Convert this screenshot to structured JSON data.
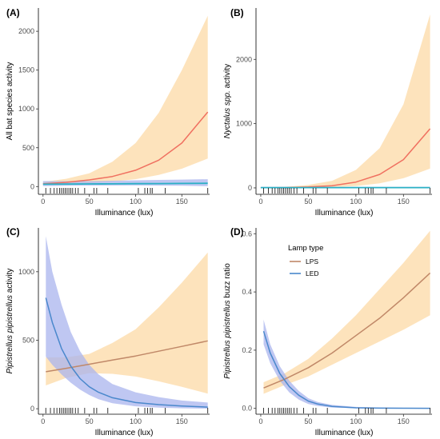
{
  "colors": {
    "lps_ribbon": "#fde2b8",
    "led_ribbon": "#aab4ee",
    "lps_line_top": "#f07060",
    "led_line_top": "#2ab0c5",
    "lps_line_bottom": "#c08868",
    "led_line_bottom": "#4a88cc"
  },
  "legend": {
    "title": "Lamp type",
    "items": [
      {
        "label": "LPS",
        "color": "#c08868"
      },
      {
        "label": "LED",
        "color": "#4a88cc"
      }
    ]
  },
  "rug_x": [
    3,
    8,
    12,
    15,
    18,
    20,
    22,
    24,
    26,
    28,
    30,
    32,
    35,
    38,
    45,
    55,
    58,
    70,
    103,
    110,
    113,
    116,
    118,
    132,
    178
  ],
  "chart_data": [
    {
      "type": "line",
      "panel": "(A)",
      "xlabel": "Illuminance (lux)",
      "ylabel": "All bat species activity",
      "xlim": [
        -5,
        180
      ],
      "ylim": [
        -100,
        2300
      ],
      "xticks": [
        0,
        50,
        100,
        150
      ],
      "yticks": [
        0,
        500,
        1000,
        1500,
        2000
      ],
      "series": [
        {
          "name": "LPS",
          "x": [
            0,
            25,
            50,
            75,
            100,
            125,
            150,
            178
          ],
          "y": [
            35,
            55,
            85,
            130,
            210,
            340,
            560,
            960
          ],
          "lower": [
            20,
            30,
            45,
            65,
            95,
            150,
            230,
            360
          ],
          "upper": [
            60,
            100,
            170,
            320,
            560,
            950,
            1500,
            2200
          ]
        },
        {
          "name": "LED",
          "x": [
            0,
            25,
            50,
            75,
            100,
            125,
            150,
            178
          ],
          "y": [
            30,
            32,
            34,
            35,
            37,
            38,
            40,
            42
          ],
          "lower": [
            5,
            10,
            12,
            13,
            14,
            12,
            10,
            5
          ],
          "upper": [
            70,
            70,
            70,
            75,
            80,
            85,
            90,
            95
          ]
        }
      ]
    },
    {
      "type": "line",
      "panel": "(B)",
      "xlabel": "Illuminance (lux)",
      "ylabel": "Nyctalus spp. activity",
      "xlim": [
        -5,
        180
      ],
      "ylim": [
        -100,
        2800
      ],
      "xticks": [
        0,
        50,
        100,
        150
      ],
      "yticks": [
        0,
        1000,
        2000
      ],
      "series": [
        {
          "name": "LPS",
          "x": [
            0,
            25,
            50,
            75,
            100,
            125,
            150,
            178
          ],
          "y": [
            2,
            5,
            15,
            35,
            90,
            210,
            440,
            920
          ],
          "lower": [
            1,
            2,
            5,
            12,
            30,
            70,
            150,
            300
          ],
          "upper": [
            5,
            15,
            45,
            110,
            280,
            620,
            1300,
            2700
          ]
        },
        {
          "name": "LED",
          "x": [
            0,
            25,
            50,
            75,
            100,
            125,
            150,
            178
          ],
          "y": [
            5,
            5,
            5,
            5,
            5,
            5,
            5,
            5
          ],
          "lower": [
            1,
            1,
            1,
            1,
            1,
            1,
            1,
            1
          ],
          "upper": [
            15,
            15,
            15,
            15,
            15,
            15,
            15,
            15
          ]
        }
      ]
    },
    {
      "type": "line",
      "panel": "(C)",
      "xlabel": "Illuminance (lux)",
      "ylabel": "Pipistrellus pipistrellus activity",
      "xlim": [
        -5,
        180
      ],
      "ylim": [
        -40,
        1320
      ],
      "xticks": [
        0,
        50,
        100,
        150
      ],
      "yticks": [
        0,
        500,
        1000
      ],
      "series": [
        {
          "name": "LPS",
          "x": [
            3,
            25,
            50,
            75,
            100,
            125,
            150,
            178
          ],
          "y": [
            270,
            295,
            325,
            355,
            385,
            420,
            455,
            495
          ],
          "lower": [
            170,
            225,
            260,
            255,
            235,
            200,
            160,
            110
          ],
          "upper": [
            375,
            375,
            400,
            480,
            580,
            740,
            920,
            1140
          ]
        },
        {
          "name": "LED",
          "x": [
            3,
            10,
            20,
            30,
            40,
            50,
            60,
            75,
            100,
            125,
            150,
            178
          ],
          "y": [
            810,
            630,
            440,
            310,
            220,
            160,
            120,
            80,
            45,
            30,
            20,
            12
          ],
          "lower": [
            380,
            320,
            250,
            190,
            140,
            100,
            70,
            40,
            18,
            8,
            3,
            1
          ],
          "upper": [
            1260,
            1000,
            760,
            560,
            420,
            320,
            250,
            180,
            120,
            85,
            60,
            45
          ]
        }
      ]
    },
    {
      "type": "line",
      "panel": "(D)",
      "xlabel": "Illuminance (lux)",
      "ylabel": "Pipistrellus pipistrellus buzz ratio",
      "xlim": [
        -5,
        180
      ],
      "ylim": [
        -0.02,
        0.62
      ],
      "xticks": [
        0,
        50,
        100,
        150
      ],
      "yticks": [
        0.0,
        0.2,
        0.4,
        0.6
      ],
      "series": [
        {
          "name": "LPS",
          "x": [
            3,
            25,
            50,
            75,
            100,
            125,
            150,
            178
          ],
          "y": [
            0.07,
            0.1,
            0.14,
            0.19,
            0.25,
            0.31,
            0.38,
            0.465
          ],
          "lower": [
            0.05,
            0.08,
            0.11,
            0.15,
            0.19,
            0.23,
            0.27,
            0.32
          ],
          "upper": [
            0.09,
            0.12,
            0.17,
            0.24,
            0.32,
            0.41,
            0.5,
            0.61
          ]
        },
        {
          "name": "LED",
          "x": [
            3,
            10,
            20,
            30,
            40,
            50,
            60,
            75,
            100,
            125,
            150,
            178
          ],
          "y": [
            0.265,
            0.19,
            0.12,
            0.075,
            0.045,
            0.025,
            0.015,
            0.007,
            0.002,
            0.001,
            0.0005,
            0.0002
          ],
          "lower": [
            0.22,
            0.155,
            0.095,
            0.055,
            0.03,
            0.015,
            0.008,
            0.003,
            0.0005,
            0.0002,
            0.0001,
            0.0
          ],
          "upper": [
            0.305,
            0.22,
            0.145,
            0.095,
            0.06,
            0.035,
            0.022,
            0.012,
            0.005,
            0.003,
            0.002,
            0.001
          ]
        }
      ]
    }
  ]
}
